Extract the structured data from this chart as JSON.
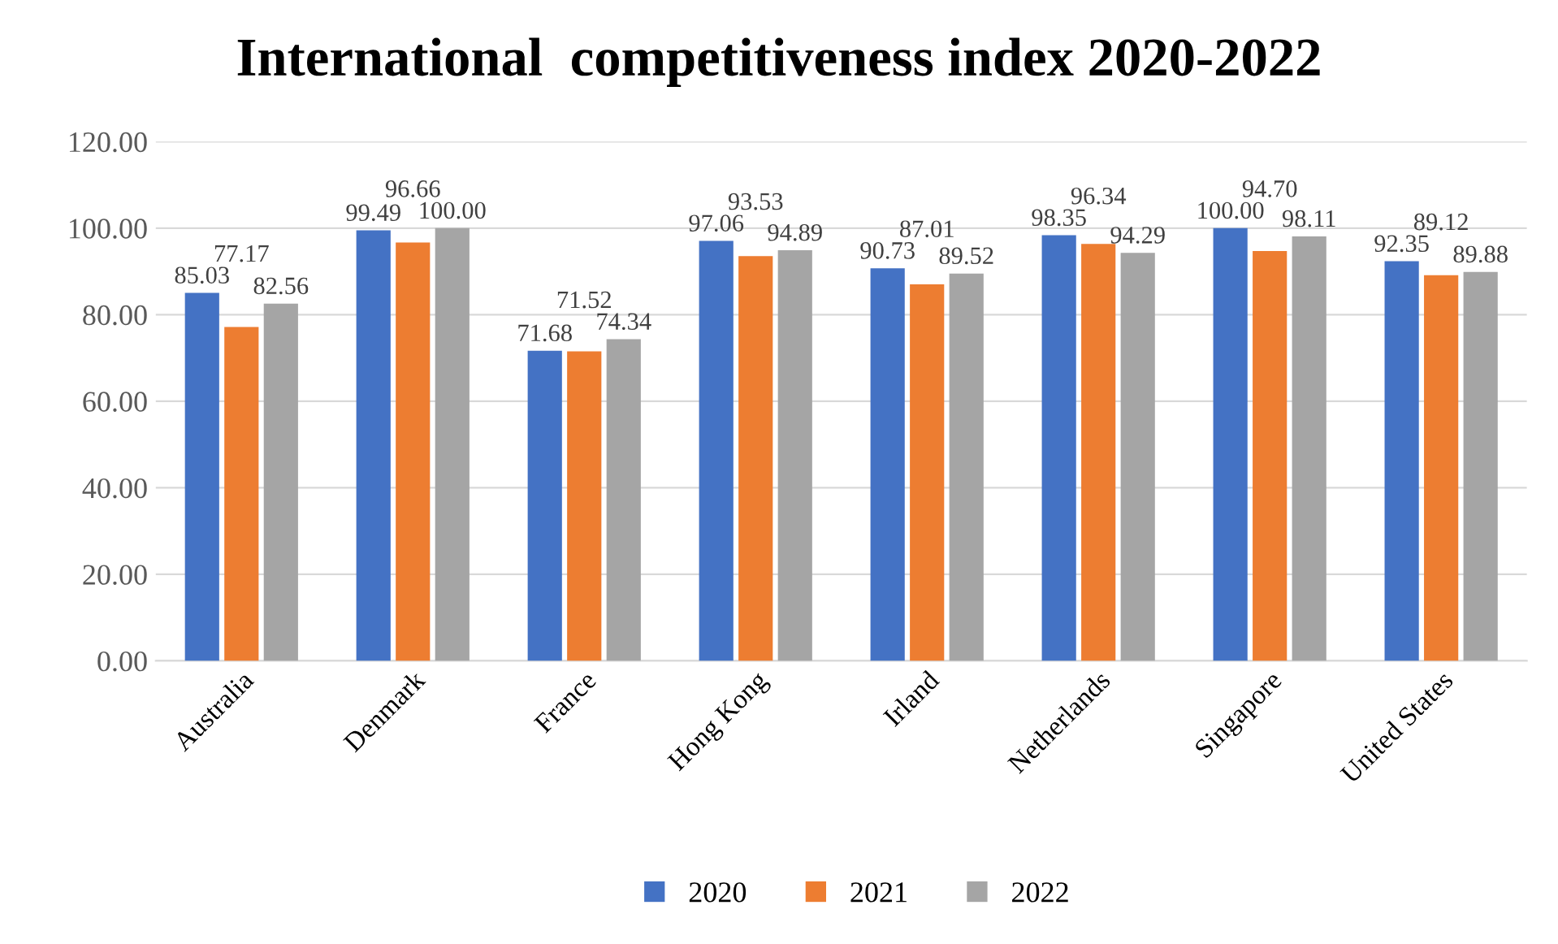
{
  "chart_data": {
    "type": "bar",
    "title": "International  competitiveness index 2020-2022",
    "categories": [
      "Australia",
      "Denmark",
      "France",
      "Hong Kong",
      "Irland",
      "Netherlands",
      "Singapore",
      "United States"
    ],
    "series": [
      {
        "name": "2020",
        "color": "#4472c4",
        "values": [
          85.03,
          99.49,
          71.68,
          97.06,
          90.73,
          98.35,
          100.0,
          92.35
        ],
        "value_labels": [
          "85.03",
          "99.49",
          "71.68",
          "97.06",
          "90.73",
          "98.35",
          "100.00",
          "92.35"
        ]
      },
      {
        "name": "2021",
        "color": "#ed7d31",
        "values": [
          77.17,
          96.66,
          71.52,
          93.53,
          87.01,
          96.34,
          94.7,
          89.12
        ],
        "value_labels": [
          "77.17",
          "96.66",
          "71.52",
          "93.53",
          "87.01",
          "96.34",
          "94.70",
          "89.12"
        ]
      },
      {
        "name": "2022",
        "color": "#a5a5a5",
        "values": [
          82.56,
          100.0,
          74.34,
          94.89,
          89.52,
          94.29,
          98.11,
          89.88
        ],
        "value_labels": [
          "82.56",
          "100.00",
          "74.34",
          "94.89",
          "89.52",
          "94.29",
          "98.11",
          "89.88"
        ]
      }
    ],
    "ylim": [
      0,
      120
    ],
    "yticks": [
      {
        "value": 0,
        "label": "0.00"
      },
      {
        "value": 20,
        "label": "20.00"
      },
      {
        "value": 40,
        "label": "40.00"
      },
      {
        "value": 60,
        "label": "60.00"
      },
      {
        "value": 80,
        "label": "80.00"
      },
      {
        "value": 100,
        "label": "100.00"
      },
      {
        "value": 120,
        "label": "120.00"
      }
    ],
    "grid": "y",
    "legend": "bottom"
  }
}
